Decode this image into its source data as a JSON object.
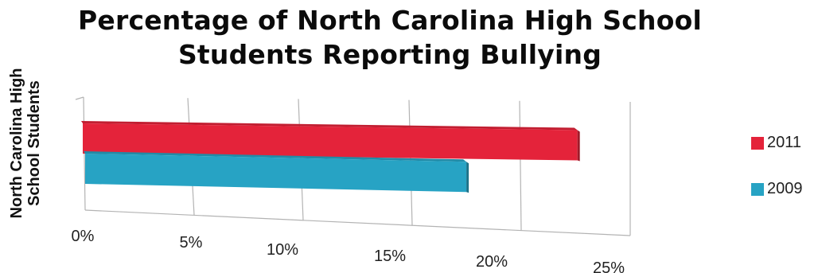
{
  "chart_data": {
    "type": "bar",
    "orientation": "horizontal",
    "title": "Percentage of North Carolina High School Students Reporting Bullying",
    "title_lines": [
      "Percentage of North Carolina High School",
      "Students Reporting Bullying"
    ],
    "ylabel": "North Carolina High School Students",
    "ylabel_lines": [
      "North Carolina High",
      "School Students"
    ],
    "xlim": [
      0,
      25
    ],
    "xticks": [
      "0%",
      "5%",
      "10%",
      "15%",
      "20%",
      "25%"
    ],
    "series": [
      {
        "name": "2011",
        "values": [
          20.5
        ],
        "color": "#e4233a"
      },
      {
        "name": "2009",
        "values": [
          16.5
        ],
        "color": "#27a3c4"
      }
    ],
    "legend_position": "right",
    "grid": true
  }
}
